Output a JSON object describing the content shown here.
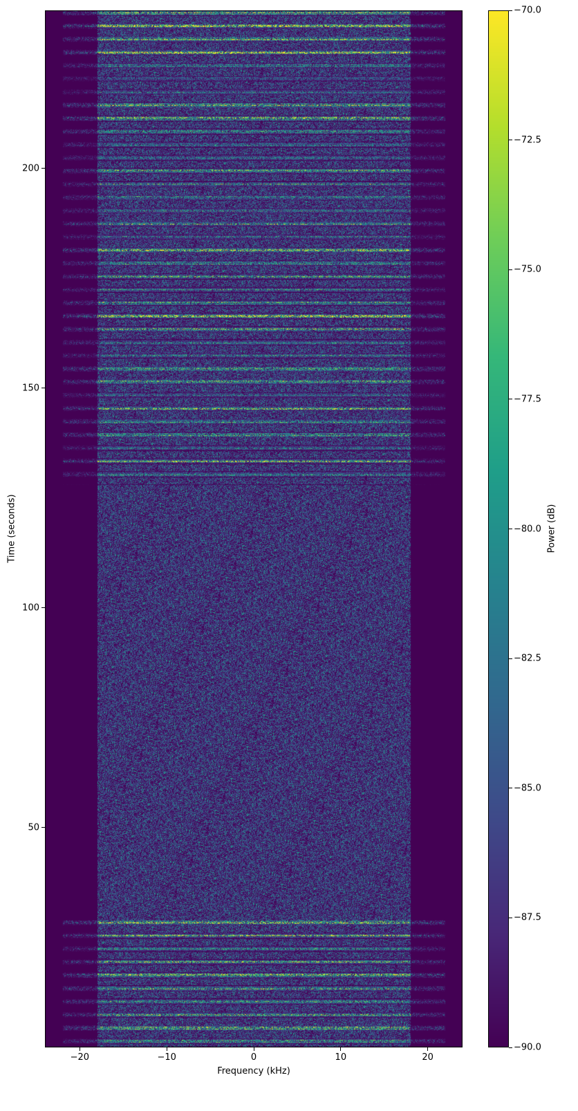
{
  "chart_data": {
    "type": "heatmap",
    "xlabel": "Frequency (kHz)",
    "ylabel": "Time (seconds)",
    "xlim": [
      -24,
      24
    ],
    "ylim": [
      0,
      236
    ],
    "xticks": [
      -20,
      -10,
      0,
      10,
      20
    ],
    "xtick_labels": [
      "−20",
      "−10",
      "0",
      "10",
      "20"
    ],
    "yticks": [
      50,
      100,
      150,
      200
    ],
    "ytick_labels": [
      "50",
      "100",
      "150",
      "200"
    ],
    "colormap": "viridis",
    "colorbar": {
      "label": "Power (dB)",
      "range": [
        -90,
        -70
      ],
      "ticks": [
        -90,
        -87.5,
        -85,
        -82.5,
        -80,
        -77.5,
        -75,
        -72.5,
        -70
      ],
      "tick_labels": [
        "−90.0",
        "−87.5",
        "−85.0",
        "−82.5",
        "−80.0",
        "−77.5",
        "−75.0",
        "−72.5",
        "−70.0"
      ]
    },
    "active_segments_seconds": [
      [
        0,
        29
      ],
      [
        128,
        236
      ]
    ],
    "noise_segment_seconds": [
      29,
      128
    ],
    "signal_band_khz": [
      -22,
      22
    ],
    "noise_band_khz": [
      -18,
      18
    ],
    "band_period_seconds": 3
  }
}
